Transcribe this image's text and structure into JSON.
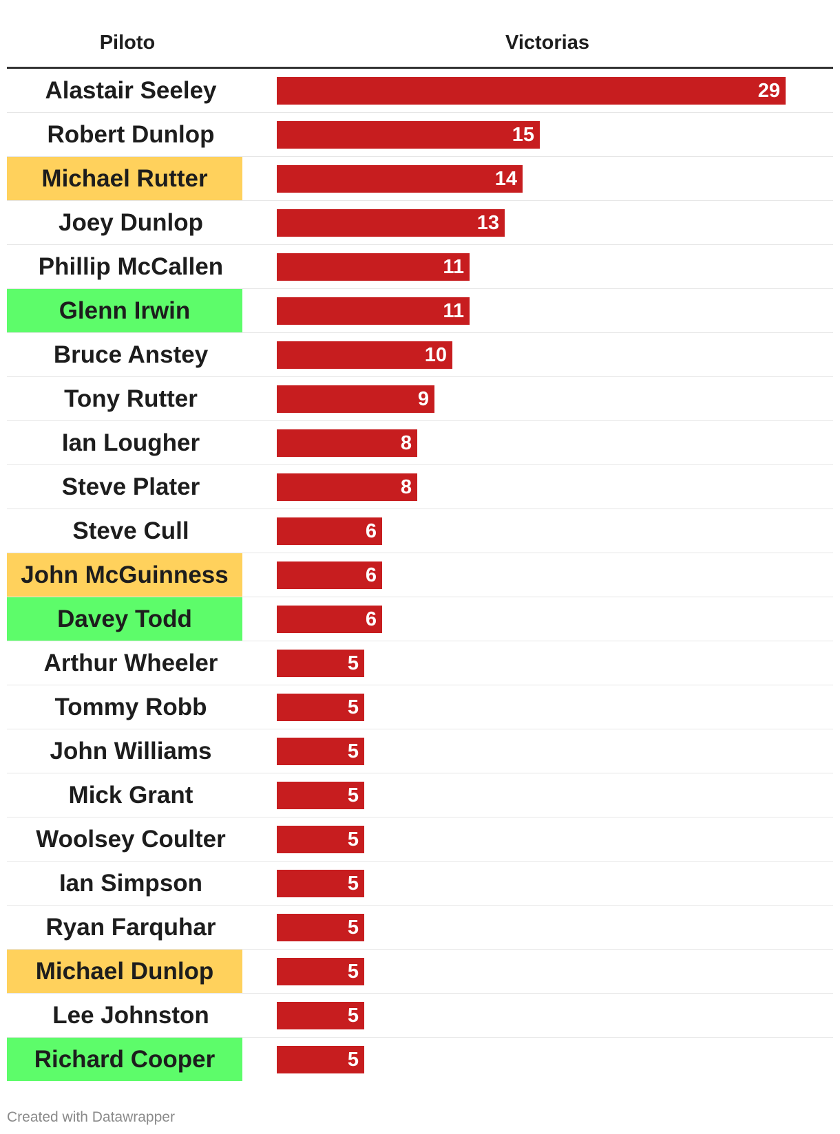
{
  "table": {
    "header_pilot": "Piloto",
    "header_wins": "Victorias"
  },
  "colors": {
    "bar": "#c71d1f",
    "highlight_orange": "#ffd15c",
    "highlight_green": "#5dfc6a"
  },
  "chart_data": {
    "type": "bar",
    "orientation": "horizontal",
    "categories": [
      "Alastair Seeley",
      "Robert Dunlop",
      "Michael Rutter",
      "Joey Dunlop",
      "Phillip McCallen",
      "Glenn Irwin",
      "Bruce Anstey",
      "Tony Rutter",
      "Ian Lougher",
      "Steve Plater",
      "Steve Cull",
      "John McGuinness",
      "Davey Todd",
      "Arthur Wheeler",
      "Tommy Robb",
      "John Williams",
      "Mick Grant",
      "Woolsey Coulter",
      "Ian Simpson",
      "Ryan Farquhar",
      "Michael Dunlop",
      "Lee Johnston",
      "Richard Cooper"
    ],
    "values": [
      29,
      15,
      14,
      13,
      11,
      11,
      10,
      9,
      8,
      8,
      6,
      6,
      6,
      5,
      5,
      5,
      5,
      5,
      5,
      5,
      5,
      5,
      5
    ],
    "highlights": [
      "none",
      "none",
      "orange",
      "none",
      "none",
      "green",
      "none",
      "none",
      "none",
      "none",
      "none",
      "orange",
      "green",
      "none",
      "none",
      "none",
      "none",
      "none",
      "none",
      "none",
      "orange",
      "none",
      "green"
    ],
    "xlim": [
      0,
      29
    ]
  },
  "footer": {
    "credit": "Created with Datawrapper"
  }
}
